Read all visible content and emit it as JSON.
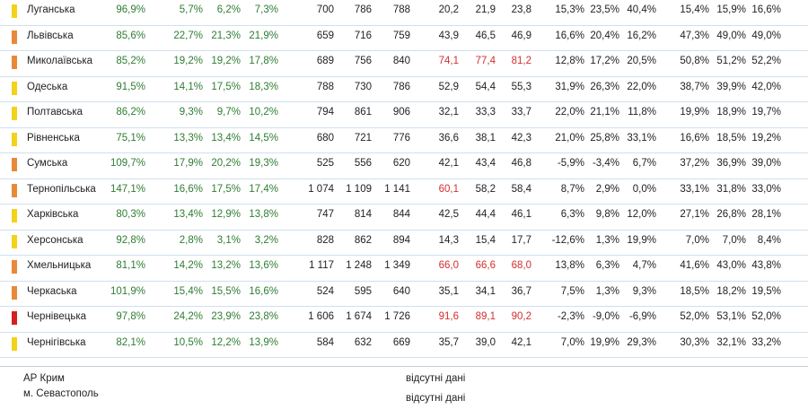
{
  "colors": {
    "yellow": "#f2d21b",
    "orange": "#e8893a",
    "red": "#d32020",
    "green_text": "#2e7d32",
    "red_text": "#d32f2f"
  },
  "rows": [
    {
      "name": "Луганська",
      "marker": "yellow",
      "vals": [
        "96,9%",
        "5,7%",
        "6,2%",
        "7,3%",
        "700",
        "786",
        "788",
        "20,2",
        "21,9",
        "23,8",
        "15,3%",
        "23,5%",
        "40,4%",
        "15,4%",
        "15,9%",
        "16,6%"
      ],
      "red_cols": []
    },
    {
      "name": "Львівська",
      "marker": "orange",
      "vals": [
        "85,6%",
        "22,7%",
        "21,3%",
        "21,9%",
        "659",
        "716",
        "759",
        "43,9",
        "46,5",
        "46,9",
        "16,6%",
        "20,4%",
        "16,2%",
        "47,3%",
        "49,0%",
        "49,0%"
      ],
      "red_cols": []
    },
    {
      "name": "Миколаївська",
      "marker": "orange",
      "vals": [
        "85,2%",
        "19,2%",
        "19,2%",
        "17,8%",
        "689",
        "756",
        "840",
        "74,1",
        "77,4",
        "81,2",
        "12,8%",
        "17,2%",
        "20,5%",
        "50,8%",
        "51,2%",
        "52,2%"
      ],
      "red_cols": [
        7,
        8,
        9
      ]
    },
    {
      "name": "Одеська",
      "marker": "yellow",
      "vals": [
        "91,5%",
        "14,1%",
        "17,5%",
        "18,3%",
        "788",
        "730",
        "786",
        "52,9",
        "54,4",
        "55,3",
        "31,9%",
        "26,3%",
        "22,0%",
        "38,7%",
        "39,9%",
        "42,0%"
      ],
      "red_cols": []
    },
    {
      "name": "Полтавська",
      "marker": "yellow",
      "vals": [
        "86,2%",
        "9,3%",
        "9,7%",
        "10,2%",
        "794",
        "861",
        "906",
        "32,1",
        "33,3",
        "33,7",
        "22,0%",
        "21,1%",
        "11,8%",
        "19,9%",
        "18,9%",
        "19,7%"
      ],
      "red_cols": []
    },
    {
      "name": "Рівненська",
      "marker": "yellow",
      "vals": [
        "75,1%",
        "13,3%",
        "13,4%",
        "14,5%",
        "680",
        "721",
        "776",
        "36,6",
        "38,1",
        "42,3",
        "21,0%",
        "25,8%",
        "33,1%",
        "16,6%",
        "18,5%",
        "19,2%"
      ],
      "red_cols": []
    },
    {
      "name": "Сумська",
      "marker": "orange",
      "vals": [
        "109,7%",
        "17,9%",
        "20,2%",
        "19,3%",
        "525",
        "556",
        "620",
        "42,1",
        "43,4",
        "46,8",
        "-5,9%",
        "-3,4%",
        "6,7%",
        "37,2%",
        "36,9%",
        "39,0%"
      ],
      "red_cols": []
    },
    {
      "name": "Тернопільська",
      "marker": "orange",
      "vals": [
        "147,1%",
        "16,6%",
        "17,5%",
        "17,4%",
        "1 074",
        "1 109",
        "1 141",
        "60,1",
        "58,2",
        "58,4",
        "8,7%",
        "2,9%",
        "0,0%",
        "33,1%",
        "31,8%",
        "33,0%"
      ],
      "red_cols": [
        7
      ]
    },
    {
      "name": "Харківська",
      "marker": "yellow",
      "vals": [
        "80,3%",
        "13,4%",
        "12,9%",
        "13,8%",
        "747",
        "814",
        "844",
        "42,5",
        "44,4",
        "46,1",
        "6,3%",
        "9,8%",
        "12,0%",
        "27,1%",
        "26,8%",
        "28,1%"
      ],
      "red_cols": []
    },
    {
      "name": "Херсонська",
      "marker": "yellow",
      "vals": [
        "92,8%",
        "2,8%",
        "3,1%",
        "3,2%",
        "828",
        "862",
        "894",
        "14,3",
        "15,4",
        "17,7",
        "-12,6%",
        "1,3%",
        "19,9%",
        "7,0%",
        "7,0%",
        "8,4%"
      ],
      "red_cols": []
    },
    {
      "name": "Хмельницька",
      "marker": "orange",
      "vals": [
        "81,1%",
        "14,2%",
        "13,2%",
        "13,6%",
        "1 117",
        "1 248",
        "1 349",
        "66,0",
        "66,6",
        "68,0",
        "13,8%",
        "6,3%",
        "4,7%",
        "41,6%",
        "43,0%",
        "43,8%"
      ],
      "red_cols": [
        7,
        8,
        9
      ]
    },
    {
      "name": "Черкаська",
      "marker": "orange",
      "vals": [
        "101,9%",
        "15,4%",
        "15,5%",
        "16,6%",
        "524",
        "595",
        "640",
        "35,1",
        "34,1",
        "36,7",
        "7,5%",
        "1,3%",
        "9,3%",
        "18,5%",
        "18,2%",
        "19,5%"
      ],
      "red_cols": []
    },
    {
      "name": "Чернівецька",
      "marker": "red",
      "vals": [
        "97,8%",
        "24,2%",
        "23,9%",
        "23,8%",
        "1 606",
        "1 674",
        "1 726",
        "91,6",
        "89,1",
        "90,2",
        "-2,3%",
        "-9,0%",
        "-6,9%",
        "52,0%",
        "53,1%",
        "52,0%"
      ],
      "red_cols": [
        7,
        8,
        9
      ]
    },
    {
      "name": "Чернігівська",
      "marker": "yellow",
      "vals": [
        "82,1%",
        "10,5%",
        "12,2%",
        "13,9%",
        "584",
        "632",
        "669",
        "35,7",
        "39,0",
        "42,1",
        "7,0%",
        "19,9%",
        "29,3%",
        "30,3%",
        "32,1%",
        "33,2%"
      ],
      "red_cols": []
    }
  ],
  "footer": [
    {
      "name": "АР Крим",
      "note": "відсутні дані"
    },
    {
      "name": "м. Севастополь",
      "note": "відсутні дані"
    }
  ]
}
